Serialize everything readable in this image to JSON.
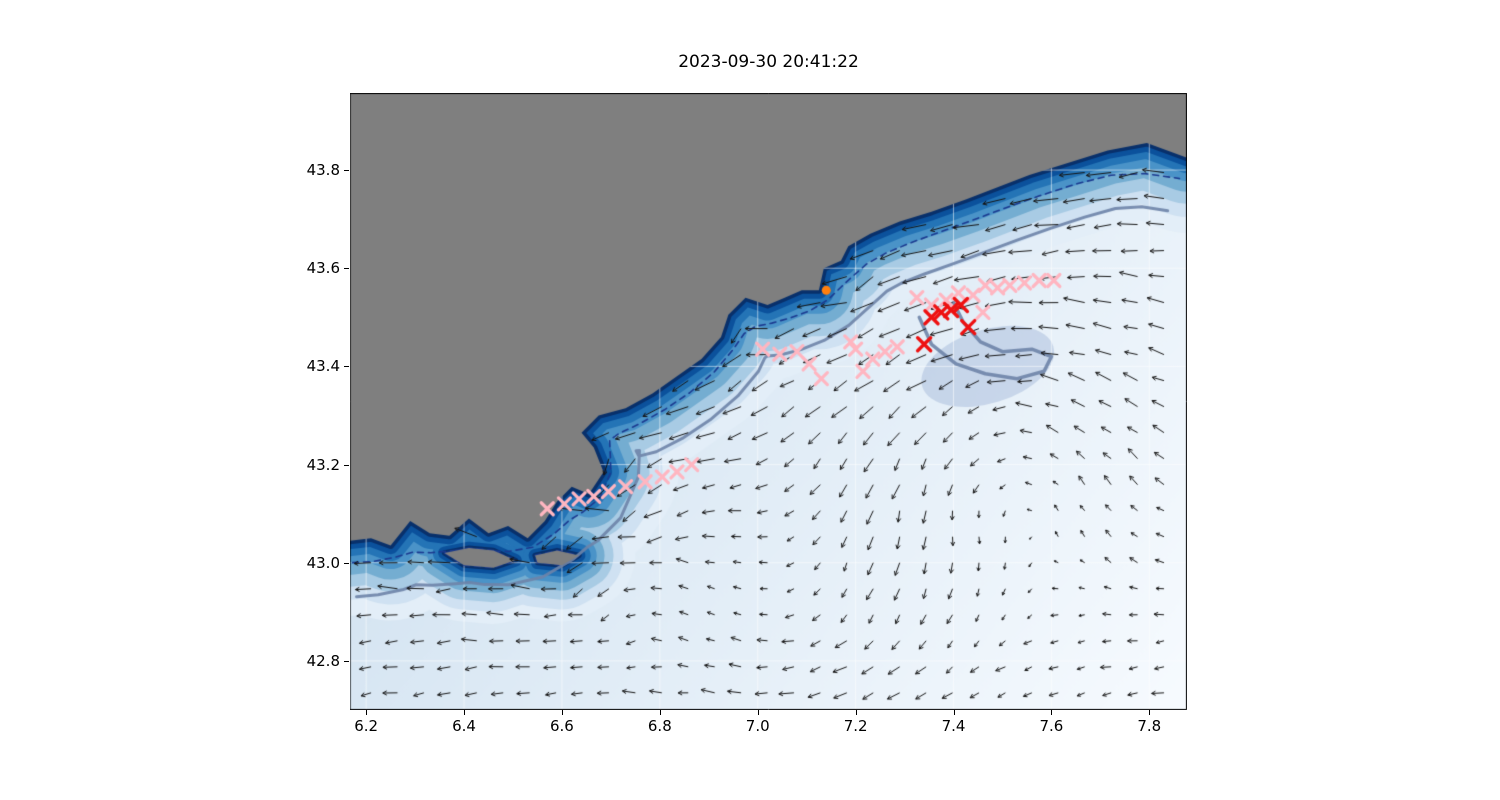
{
  "chart_data": {
    "type": "map_quiver_scatter",
    "title": "2023-09-30 20:41:22",
    "xlim": [
      6.167,
      7.877
    ],
    "ylim": [
      42.7,
      43.957
    ],
    "xticks": [
      6.2,
      6.4,
      6.6,
      6.8,
      7.0,
      7.2,
      7.4,
      7.6,
      7.8
    ],
    "yticks": [
      42.8,
      43.0,
      43.2,
      43.4,
      43.6,
      43.8
    ],
    "grid": true,
    "land_color": "#7f7f7f",
    "ocean_gradient": [
      "#c8dced",
      "#f7fbff"
    ],
    "coast_bands": [
      [
        "#e3eef8",
        150
      ],
      [
        "#cfe1f2",
        118
      ],
      [
        "#a8cbe4",
        92
      ],
      [
        "#74add1",
        68
      ],
      [
        "#4a93c8",
        47
      ],
      [
        "#2474b6",
        31
      ],
      [
        "#0b519c",
        17
      ],
      [
        "#08306b",
        7
      ]
    ],
    "coastline": [
      [
        6.167,
        43.045
      ],
      [
        6.21,
        43.05
      ],
      [
        6.25,
        43.035
      ],
      [
        6.29,
        43.085
      ],
      [
        6.33,
        43.06
      ],
      [
        6.37,
        43.055
      ],
      [
        6.41,
        43.09
      ],
      [
        6.45,
        43.06
      ],
      [
        6.49,
        43.075
      ],
      [
        6.53,
        43.05
      ],
      [
        6.565,
        43.085
      ],
      [
        6.59,
        43.125
      ],
      [
        6.62,
        43.155
      ],
      [
        6.655,
        43.14
      ],
      [
        6.685,
        43.185
      ],
      [
        6.665,
        43.235
      ],
      [
        6.64,
        43.265
      ],
      [
        6.675,
        43.3
      ],
      [
        6.73,
        43.315
      ],
      [
        6.785,
        43.345
      ],
      [
        6.835,
        43.38
      ],
      [
        6.885,
        43.415
      ],
      [
        6.925,
        43.46
      ],
      [
        6.94,
        43.505
      ],
      [
        6.975,
        43.54
      ],
      [
        7.02,
        43.525
      ],
      [
        7.055,
        43.54
      ],
      [
        7.09,
        43.555
      ],
      [
        7.125,
        43.555
      ],
      [
        7.135,
        43.6
      ],
      [
        7.17,
        43.615
      ],
      [
        7.185,
        43.645
      ],
      [
        7.23,
        43.67
      ],
      [
        7.29,
        43.695
      ],
      [
        7.355,
        43.715
      ],
      [
        7.425,
        43.74
      ],
      [
        7.49,
        43.765
      ],
      [
        7.555,
        43.79
      ],
      [
        7.635,
        43.815
      ],
      [
        7.715,
        43.84
      ],
      [
        7.795,
        43.855
      ],
      [
        7.877,
        43.825
      ]
    ],
    "islands": [
      [
        [
          6.36,
          43.02
        ],
        [
          6.41,
          43.03
        ],
        [
          6.46,
          43.025
        ],
        [
          6.505,
          43.005
        ],
        [
          6.46,
          42.99
        ],
        [
          6.4,
          42.995
        ]
      ],
      [
        [
          6.545,
          43.015
        ],
        [
          6.59,
          43.025
        ],
        [
          6.635,
          43.015
        ],
        [
          6.6,
          42.995
        ],
        [
          6.55,
          43.0
        ]
      ]
    ],
    "contours": {
      "dashed_color": "#1b3a90",
      "dashed_offset": 0.045,
      "solid_color": "rgba(110,132,168,0.9)",
      "solid_offset": 0.115,
      "hook": [
        [
          7.33,
          43.5
        ],
        [
          7.355,
          43.445
        ],
        [
          7.405,
          43.405
        ],
        [
          7.465,
          43.385
        ],
        [
          7.53,
          43.375
        ],
        [
          7.585,
          43.39
        ],
        [
          7.6,
          43.42
        ],
        [
          7.56,
          43.435
        ],
        [
          7.5,
          43.43
        ],
        [
          7.455,
          43.45
        ],
        [
          7.42,
          43.49
        ],
        [
          7.4,
          43.53
        ]
      ],
      "patch": {
        "center": [
          7.47,
          43.4
        ],
        "rx": 0.14,
        "ry": 0.075,
        "color": "rgba(125,152,198,0.30)"
      }
    },
    "quiver": {
      "x0": 6.21,
      "x1": 7.86,
      "dx": 0.054,
      "y0": 42.735,
      "y1": 43.93,
      "dy": 0.053,
      "color": "#141414",
      "flow": {
        "base": [
          -0.5,
          -0.12
        ],
        "coastal_jet": {
          "strength": 0.85,
          "decay": 0.14
        },
        "eddies": [
          {
            "center": [
              7.5,
              43.27
            ],
            "radius": 0.33,
            "strength": 1.15
          },
          {
            "center": [
              6.85,
              43.02
            ],
            "radius": 0.22,
            "strength": 0.55
          },
          {
            "center": [
              7.05,
              42.88
            ],
            "radius": 0.3,
            "strength": -0.45
          }
        ]
      }
    },
    "markers": {
      "pink_x_color": "#ffb6c1",
      "red_x_color": "#ee1111",
      "orange_dot_color": "#ff7f0e",
      "pink_x": [
        [
          6.57,
          43.11
        ],
        [
          6.605,
          43.12
        ],
        [
          6.635,
          43.13
        ],
        [
          6.665,
          43.135
        ],
        [
          6.695,
          43.145
        ],
        [
          6.73,
          43.155
        ],
        [
          6.77,
          43.165
        ],
        [
          6.805,
          43.175
        ],
        [
          6.835,
          43.185
        ],
        [
          6.865,
          43.2
        ],
        [
          7.01,
          43.435
        ],
        [
          7.045,
          43.425
        ],
        [
          7.08,
          43.43
        ],
        [
          7.105,
          43.405
        ],
        [
          7.13,
          43.375
        ],
        [
          7.19,
          43.45
        ],
        [
          7.2,
          43.435
        ],
        [
          7.215,
          43.39
        ],
        [
          7.235,
          43.415
        ],
        [
          7.26,
          43.43
        ],
        [
          7.285,
          43.44
        ],
        [
          7.325,
          43.54
        ],
        [
          7.355,
          43.525
        ],
        [
          7.385,
          43.535
        ],
        [
          7.41,
          43.55
        ],
        [
          7.44,
          43.545
        ],
        [
          7.46,
          43.51
        ],
        [
          7.465,
          43.565
        ],
        [
          7.49,
          43.56
        ],
        [
          7.515,
          43.565
        ],
        [
          7.545,
          43.57
        ],
        [
          7.575,
          43.575
        ],
        [
          7.605,
          43.575
        ]
      ],
      "red_x": [
        [
          7.355,
          43.5
        ],
        [
          7.375,
          43.51
        ],
        [
          7.395,
          43.515
        ],
        [
          7.415,
          43.525
        ],
        [
          7.43,
          43.48
        ],
        [
          7.34,
          43.445
        ]
      ],
      "orange_dot": [
        [
          7.14,
          43.555
        ]
      ]
    }
  }
}
